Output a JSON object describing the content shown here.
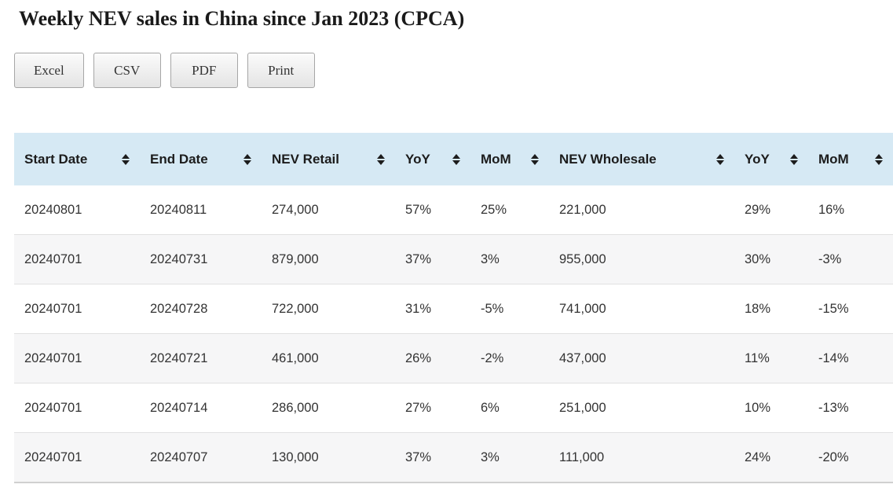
{
  "page": {
    "title": "Weekly NEV sales in China since Jan 2023 (CPCA)"
  },
  "toolbar": {
    "buttons": [
      {
        "label": "Excel"
      },
      {
        "label": "CSV"
      },
      {
        "label": "PDF"
      },
      {
        "label": "Print"
      }
    ]
  },
  "table": {
    "columns": [
      {
        "label": "Start Date",
        "sortable": true,
        "sort_icon": "sort-both-icon"
      },
      {
        "label": "End Date",
        "sortable": true,
        "sort_icon": "sort-both-icon"
      },
      {
        "label": "NEV Retail",
        "sortable": true,
        "sort_icon": "sort-both-icon"
      },
      {
        "label": "YoY",
        "sortable": true,
        "sort_icon": "sort-both-icon"
      },
      {
        "label": "MoM",
        "sortable": true,
        "sort_icon": "sort-both-icon"
      },
      {
        "label": "NEV Wholesale",
        "sortable": true,
        "sort_icon": "sort-both-icon"
      },
      {
        "label": "YoY",
        "sortable": true,
        "sort_icon": "sort-both-icon"
      },
      {
        "label": "MoM",
        "sortable": true,
        "sort_icon": "sort-both-icon"
      }
    ],
    "rows": [
      [
        "20240801",
        "20240811",
        "274,000",
        "57%",
        "25%",
        "221,000",
        "29%",
        "16%"
      ],
      [
        "20240701",
        "20240731",
        "879,000",
        "37%",
        "3%",
        "955,000",
        "30%",
        "-3%"
      ],
      [
        "20240701",
        "20240728",
        "722,000",
        "31%",
        "-5%",
        "741,000",
        "18%",
        "-15%"
      ],
      [
        "20240701",
        "20240721",
        "461,000",
        "26%",
        "-2%",
        "437,000",
        "11%",
        "-14%"
      ],
      [
        "20240701",
        "20240714",
        "286,000",
        "27%",
        "6%",
        "251,000",
        "10%",
        "-13%"
      ],
      [
        "20240701",
        "20240707",
        "130,000",
        "37%",
        "3%",
        "111,000",
        "24%",
        "-20%"
      ]
    ]
  },
  "chart_data": {
    "type": "table",
    "title": "Weekly NEV sales in China since Jan 2023 (CPCA)",
    "columns": [
      "Start Date",
      "End Date",
      "NEV Retail",
      "YoY",
      "MoM",
      "NEV Wholesale",
      "YoY",
      "MoM"
    ],
    "rows": [
      [
        "20240801",
        "20240811",
        "274,000",
        "57%",
        "25%",
        "221,000",
        "29%",
        "16%"
      ],
      [
        "20240701",
        "20240731",
        "879,000",
        "37%",
        "3%",
        "955,000",
        "30%",
        "-3%"
      ],
      [
        "20240701",
        "20240728",
        "722,000",
        "31%",
        "-5%",
        "741,000",
        "18%",
        "-15%"
      ],
      [
        "20240701",
        "20240721",
        "461,000",
        "26%",
        "-2%",
        "437,000",
        "11%",
        "-14%"
      ],
      [
        "20240701",
        "20240714",
        "286,000",
        "27%",
        "6%",
        "251,000",
        "10%",
        "-13%"
      ],
      [
        "20240701",
        "20240707",
        "130,000",
        "37%",
        "3%",
        "111,000",
        "24%",
        "-20%"
      ]
    ]
  },
  "colors": {
    "header_bg": "#d6e9f4",
    "alt_row_bg": "#f6f6f7",
    "row_border": "#e1e1e1",
    "table_bottom_border": "#d0d0d0",
    "cell_text": "#333333",
    "header_text": "#1c1c1c",
    "button_border": "#a6a6a6"
  }
}
